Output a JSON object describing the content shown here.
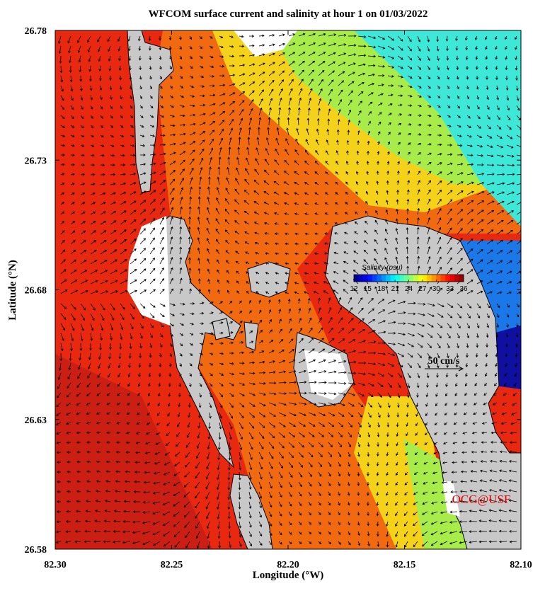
{
  "map": {
    "title": "WFCOM surface current and salinity at hour 1 on 01/03/2022",
    "x_label": "Longitude (°W)",
    "y_label": "Latitude (°N)",
    "xlim": [
      82.3,
      82.1
    ],
    "ylim": [
      26.58,
      26.78
    ],
    "xticks": [
      {
        "value": 82.3,
        "label": "82.30"
      },
      {
        "value": 82.25,
        "label": "82.25"
      },
      {
        "value": 82.2,
        "label": "82.20"
      },
      {
        "value": 82.15,
        "label": "82.15"
      },
      {
        "value": 82.1,
        "label": "82.10"
      }
    ],
    "yticks": [
      26.58,
      26.63,
      26.68,
      26.73,
      26.78
    ],
    "colorbar": {
      "title": "Salinity (psu)",
      "lim": [
        12,
        36
      ],
      "ticks": [
        12,
        15,
        18,
        21,
        24,
        27,
        30,
        33,
        36
      ]
    },
    "scale_label": "50 cm/s",
    "credit": "OCG@USF"
  }
}
